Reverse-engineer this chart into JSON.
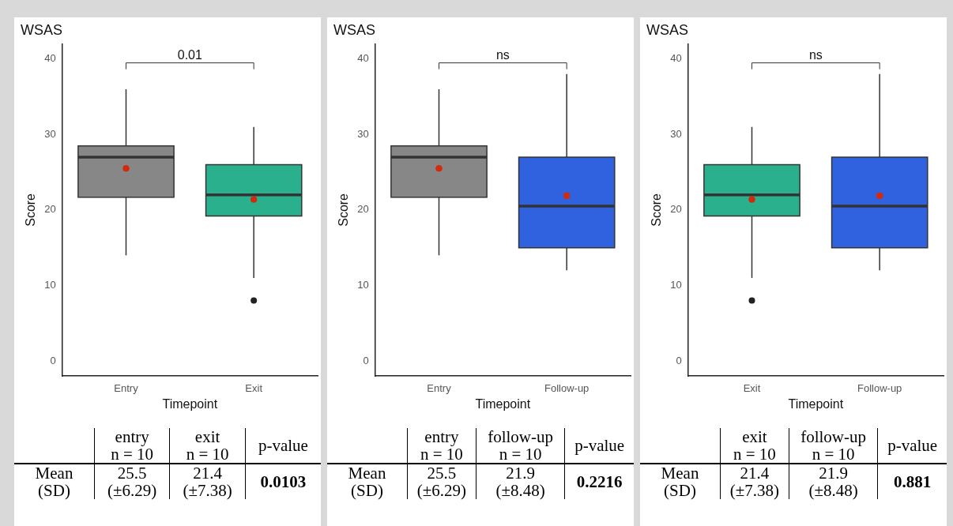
{
  "chart_data": [
    {
      "type": "box",
      "title": "WSAS",
      "xlabel": "Timepoint",
      "ylabel": "Score",
      "categories": [
        "Entry",
        "Exit"
      ],
      "colors": [
        "#878787",
        "#2bb08e"
      ],
      "boxes": [
        {
          "low": 14,
          "q1": 21.7,
          "median": 27,
          "q3": 28.5,
          "high": 36,
          "mean": 25.5
        },
        {
          "low": 11,
          "q1": 19.2,
          "median": 22,
          "q3": 26,
          "high": 31,
          "mean": 21.4,
          "outliers": [
            8
          ]
        }
      ],
      "ylim": [
        -2,
        42
      ],
      "yticks": [
        0,
        10,
        20,
        30,
        40
      ],
      "grid": false,
      "annotations": [
        "0.01",
        "entry\nn = 10",
        "exit\nn = 10",
        "p-value",
        "Mean\n(SD)",
        "25.5\n(±6.29)",
        "21.4\n(±7.38)",
        "0.0103"
      ]
    },
    {
      "type": "box",
      "title": "WSAS",
      "xlabel": "Timepoint",
      "ylabel": "Score",
      "categories": [
        "Entry",
        "Follow-up"
      ],
      "colors": [
        "#878787",
        "#3062e0"
      ],
      "boxes": [
        {
          "low": 14,
          "q1": 21.7,
          "median": 27,
          "q3": 28.5,
          "high": 36,
          "mean": 25.5
        },
        {
          "low": 12,
          "q1": 15,
          "median": 20.5,
          "q3": 27,
          "high": 38,
          "mean": 21.9
        }
      ],
      "ylim": [
        -2,
        42
      ],
      "yticks": [
        0,
        10,
        20,
        30,
        40
      ],
      "grid": false,
      "annotations": [
        "ns",
        "entry\nn = 10",
        "follow-up\nn = 10",
        "p-value",
        "Mean\n(SD)",
        "25.5\n(±6.29)",
        "21.9\n(±8.48)",
        "0.2216"
      ]
    },
    {
      "type": "box",
      "title": "WSAS",
      "xlabel": "Timepoint",
      "ylabel": "Score",
      "categories": [
        "Exit",
        "Follow-up"
      ],
      "colors": [
        "#2bb08e",
        "#3062e0"
      ],
      "boxes": [
        {
          "low": 11,
          "q1": 19.2,
          "median": 22,
          "q3": 26,
          "high": 31,
          "mean": 21.4,
          "outliers": [
            8
          ]
        },
        {
          "low": 12,
          "q1": 15,
          "median": 20.5,
          "q3": 27,
          "high": 38,
          "mean": 21.9
        }
      ],
      "ylim": [
        -2,
        42
      ],
      "yticks": [
        0,
        10,
        20,
        30,
        40
      ],
      "grid": false,
      "annotations": [
        "ns",
        "exit\nn = 10",
        "follow-up\nn = 10",
        "p-value",
        "Mean\n(SD)",
        "21.4\n(±7.38)",
        "21.9\n(±8.48)",
        "0.881"
      ]
    }
  ]
}
